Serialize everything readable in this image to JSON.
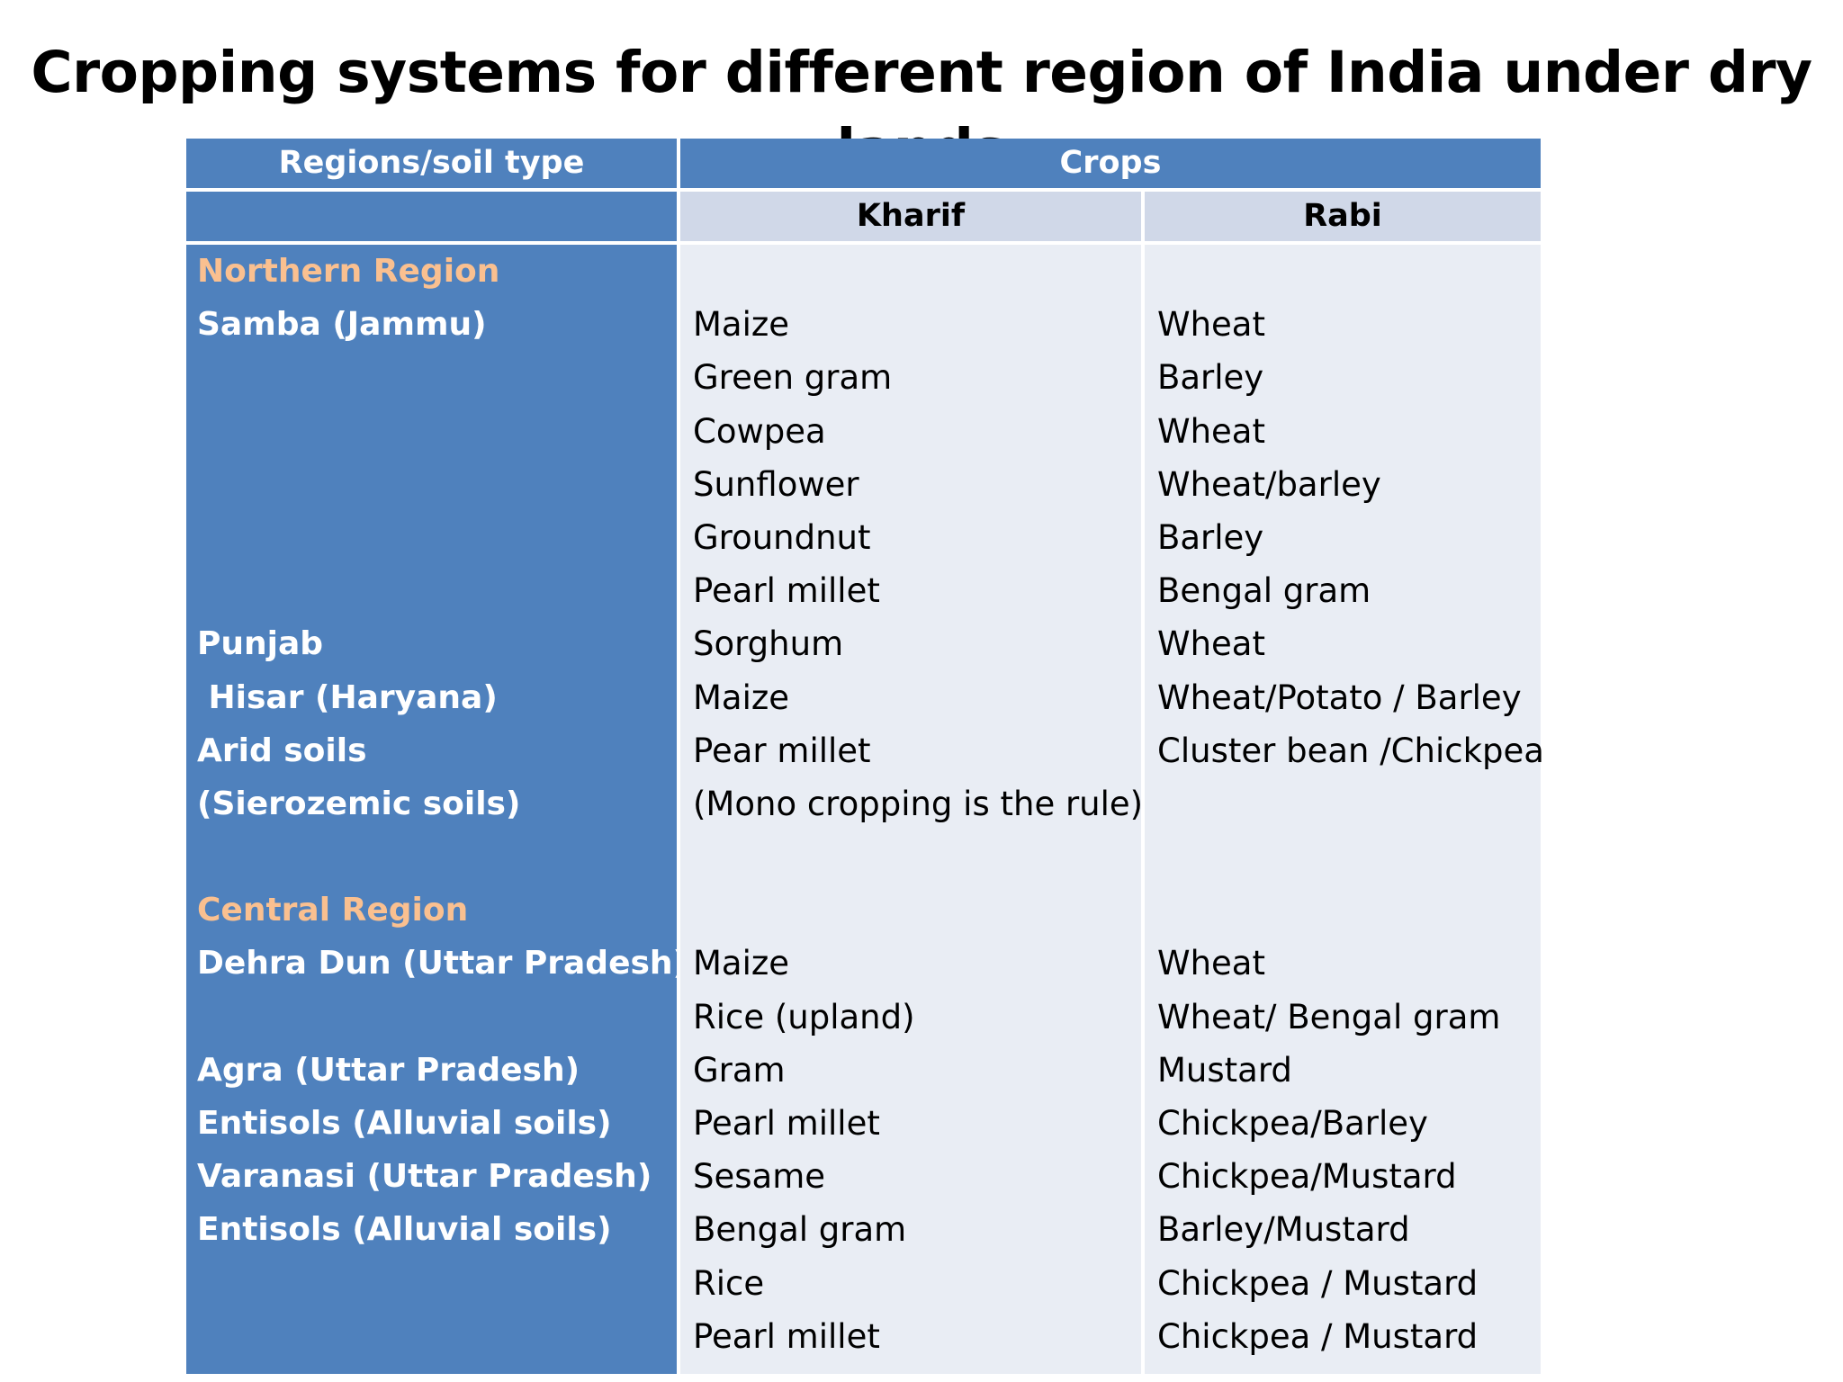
{
  "title": "Cropping systems for different region of India under dry lands",
  "table": {
    "header": {
      "regions": "Regions/soil type",
      "crops": "Crops",
      "kharif": "Kharif",
      "rabi": "Rabi"
    },
    "rows": [
      {
        "region": "Northern Region",
        "heading": true,
        "kharif": "",
        "rabi": ""
      },
      {
        "region": "Samba (Jammu)",
        "kharif": "Maize",
        "rabi": "Wheat"
      },
      {
        "region": "",
        "kharif": "Green gram",
        "rabi": "Barley"
      },
      {
        "region": "",
        "kharif": "Cowpea",
        "rabi": "Wheat"
      },
      {
        "region": "",
        "kharif": "Sunflower",
        "rabi": "Wheat/barley"
      },
      {
        "region": "",
        "kharif": "Groundnut",
        "rabi": "Barley"
      },
      {
        "region": "",
        "kharif": "Pearl millet",
        "rabi": "Bengal gram"
      },
      {
        "region": "Punjab",
        "kharif": "Sorghum",
        "rabi": "Wheat"
      },
      {
        "region": " Hisar (Haryana)",
        "kharif": "Maize",
        "rabi": "Wheat/Potato / Barley"
      },
      {
        "region": "Arid soils",
        "kharif": "Pear millet",
        "rabi": "Cluster bean /Chickpea"
      },
      {
        "region": "(Sierozemic soils)",
        "kharif": "(Mono cropping is the rule)",
        "rabi": ""
      },
      {
        "region": "",
        "kharif": "",
        "rabi": ""
      },
      {
        "region": "Central Region",
        "heading": true,
        "kharif": "",
        "rabi": ""
      },
      {
        "region": "Dehra Dun (Uttar Pradesh)",
        "kharif": "Maize",
        "rabi": "Wheat"
      },
      {
        "region": "",
        "kharif": "Rice (upland)",
        "rabi": "Wheat/ Bengal gram"
      },
      {
        "region": "Agra (Uttar Pradesh)",
        "kharif": "Gram",
        "rabi": "Mustard"
      },
      {
        "region": "Entisols (Alluvial soils)",
        "kharif": "Pearl millet",
        "rabi": "Chickpea/Barley"
      },
      {
        "region": "Varanasi (Uttar Pradesh)",
        "kharif": "Sesame",
        "rabi": "Chickpea/Mustard"
      },
      {
        "region": "Entisols (Alluvial soils)",
        "kharif": "Bengal gram",
        "rabi": "Barley/Mustard"
      },
      {
        "region": "",
        "kharif": "Rice",
        "rabi": "Chickpea / Mustard"
      },
      {
        "region": "",
        "kharif": "Pearl millet",
        "rabi": "Chickpea / Mustard"
      }
    ]
  },
  "colors": {
    "header_blue": "#4f81bd",
    "subheader": "#d0d8e8",
    "body_light": "#e9edf4",
    "region_heading": "#fac090"
  }
}
